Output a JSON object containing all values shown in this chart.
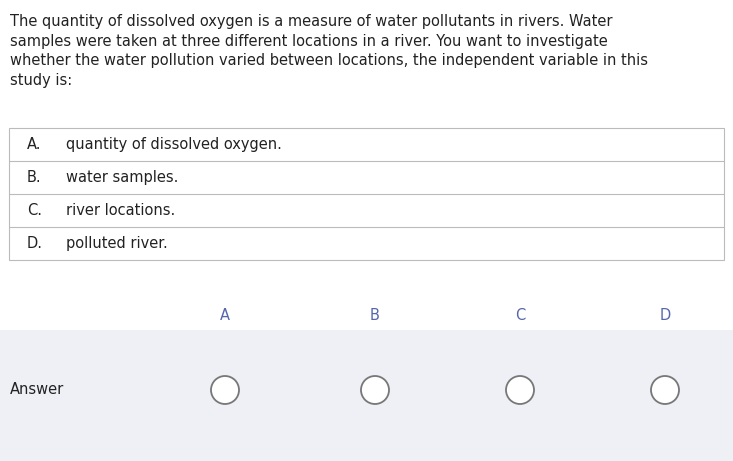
{
  "background_color": "#ffffff",
  "answer_row_bg": "#eef0f5",
  "paragraph": "The quantity of dissolved oxygen is a measure of water pollutants in rivers. Water samples were taken at three different locations in a river. You want to investigate whether the water pollution varied between locations, the independent variable in this study is:",
  "para_lines": [
    "The quantity of dissolved oxygen is a measure of water pollutants in rivers. Water",
    "samples were taken at three different locations in a river. You want to investigate",
    "whether the water pollution varied between locations, the independent variable in this",
    "study is:"
  ],
  "options": [
    {
      "letter": "A.",
      "text": "quantity of dissolved oxygen."
    },
    {
      "letter": "B.",
      "text": "water samples."
    },
    {
      "letter": "C.",
      "text": "river locations."
    },
    {
      "letter": "D.",
      "text": "polluted river."
    }
  ],
  "answer_label": "Answer",
  "answer_letters": [
    "A",
    "B",
    "C",
    "D"
  ],
  "font_size_para": 10.5,
  "font_size_options": 10.5,
  "font_size_answer": 10.5,
  "font_size_letters": 10.5,
  "text_color": "#222222",
  "border_color": "#bbbbbb",
  "circle_color": "#777777",
  "answer_letter_color": "#5566aa"
}
